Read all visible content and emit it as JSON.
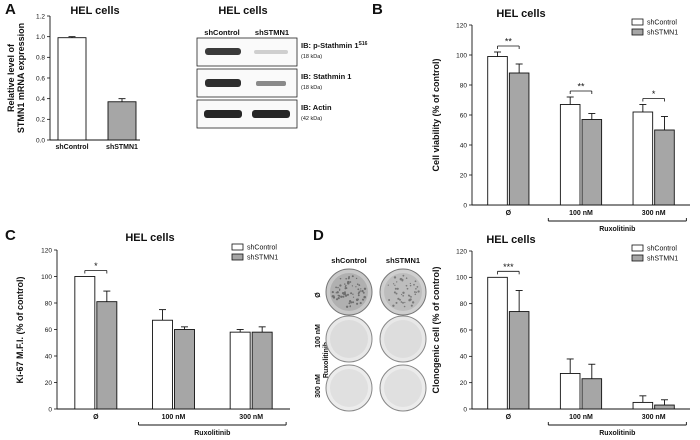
{
  "panels": {
    "A": {
      "letter": "A",
      "title": "HEL cells",
      "blot_title": "HEL cells",
      "blot_columns": [
        "shControl",
        "shSTMN1"
      ],
      "blot_labels": [
        {
          "main": "IB: p-Stathmin 1",
          "sup": "S16",
          "sub": "(18 kDa)"
        },
        {
          "main": "IB: Stathmin 1",
          "sup": "",
          "sub": "(18 kDa)"
        },
        {
          "main": "IB: Actin",
          "sup": "",
          "sub": "(42 kDa)"
        }
      ]
    },
    "B": {
      "letter": "B",
      "title": "HEL cells"
    },
    "C": {
      "letter": "C",
      "title": "HEL cells"
    },
    "D": {
      "letter": "D",
      "title": "HEL cells",
      "colony_columns": [
        "shControl",
        "shSTMN1"
      ],
      "colony_rows": [
        "Ø",
        "100 nM",
        "300 nM"
      ],
      "colony_group_label": "Ruxolitinib"
    }
  },
  "colors": {
    "shControl": "#ffffff",
    "shSTMN1": "#a6a6a6",
    "ink": "#111111"
  },
  "chart_data": [
    {
      "id": "A",
      "type": "bar",
      "categories": [
        "shControl",
        "shSTMN1"
      ],
      "values": [
        0.99,
        0.37
      ],
      "errors": [
        0.01,
        0.03
      ],
      "colors": [
        "#ffffff",
        "#a6a6a6"
      ],
      "title": "HEL cells",
      "xlabel": "",
      "ylabel_lines": [
        "Relative level of",
        "STMN1 mRNA expression"
      ],
      "ylim": [
        0,
        1.2
      ],
      "yticks": [
        "0.0",
        "0.2",
        "0.4",
        "0.6",
        "0.8",
        "1.0",
        "1.2"
      ]
    },
    {
      "id": "B",
      "type": "bar",
      "title": "HEL cells",
      "ylabel": "Cell viability (% of control)",
      "ylim": [
        0,
        120
      ],
      "yticks": [
        "0",
        "20",
        "40",
        "60",
        "80",
        "100",
        "120"
      ],
      "categories": [
        "Ø",
        "100 nM",
        "300 nM"
      ],
      "group_label": "Ruxolitinib",
      "series": [
        {
          "name": "shControl",
          "values": [
            99,
            67,
            62
          ],
          "errors": [
            3,
            5,
            5
          ]
        },
        {
          "name": "shSTMN1",
          "values": [
            88,
            57,
            50
          ],
          "errors": [
            6,
            4,
            9
          ]
        }
      ],
      "significance": [
        "**",
        "**",
        "*"
      ],
      "legend": "top-right"
    },
    {
      "id": "C",
      "type": "bar",
      "title": "HEL cells",
      "ylabel": "Ki-67 M.F.I. (% of control)",
      "ylim": [
        0,
        120
      ],
      "yticks": [
        "0",
        "20",
        "40",
        "60",
        "80",
        "100",
        "120"
      ],
      "categories": [
        "Ø",
        "100 nM",
        "300 nM"
      ],
      "group_label": "Ruxolitinib",
      "series": [
        {
          "name": "shControl",
          "values": [
            100,
            67,
            58
          ],
          "errors": [
            0,
            8,
            2
          ]
        },
        {
          "name": "shSTMN1",
          "values": [
            81,
            60,
            58
          ],
          "errors": [
            8,
            2,
            4
          ]
        }
      ],
      "significance": [
        "*",
        "",
        ""
      ],
      "legend": "top-right"
    },
    {
      "id": "D",
      "type": "bar",
      "title": "HEL cells",
      "ylabel": "Clonogenic cell (% of control)",
      "ylim": [
        0,
        120
      ],
      "yticks": [
        "0",
        "20",
        "40",
        "60",
        "80",
        "100",
        "120"
      ],
      "categories": [
        "Ø",
        "100 nM",
        "300 nM"
      ],
      "group_label": "Ruxolitinib",
      "series": [
        {
          "name": "shControl",
          "values": [
            100,
            27,
            5
          ],
          "errors": [
            0,
            11,
            5
          ]
        },
        {
          "name": "shSTMN1",
          "values": [
            74,
            23,
            3
          ],
          "errors": [
            16,
            11,
            4
          ]
        }
      ],
      "significance": [
        "***",
        "",
        ""
      ],
      "legend": "top-right"
    }
  ]
}
